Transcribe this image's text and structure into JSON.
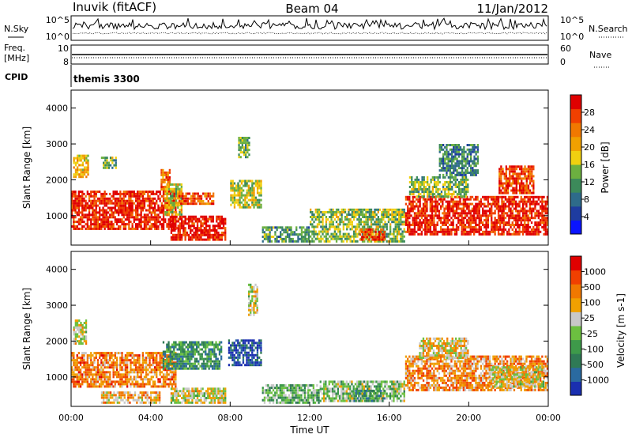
{
  "header": {
    "title_left": "Inuvik (fitACF)",
    "title_center": "Beam 04",
    "title_right": "11/Jan/2012"
  },
  "top_panels": {
    "nsky_label": "N.Sky",
    "nsky_ticks": [
      "10^5",
      "10^0"
    ],
    "nsearch_label": "N.Search",
    "nsearch_ticks": [
      "10^5",
      "10^0"
    ],
    "freq_label": "Freq.",
    "freq_unit": "[MHz]",
    "freq_ticks": [
      "10",
      "8"
    ],
    "nave_label": "Nave",
    "nave_ticks": [
      "60",
      "0"
    ],
    "cpid_label": "CPID",
    "cpid_value": "themis 3300"
  },
  "colors": {
    "power_scale": [
      "#0a14ff",
      "#1e3ca0",
      "#2e6b8a",
      "#3c8a5a",
      "#6cb040",
      "#f0d010",
      "#f0a000",
      "#f07800",
      "#f04000",
      "#e00000"
    ],
    "velocity_scale": [
      "#1a2fb0",
      "#2a6aa0",
      "#2f7a55",
      "#3e9a4a",
      "#6cc040",
      "#c8c8c8",
      "#f0a000",
      "#f07800",
      "#f04000",
      "#e00000"
    ]
  },
  "chart_data": [
    {
      "type": "heatmap",
      "panel": "power",
      "ylabel": "Slant Range [km]",
      "ylim": [
        180,
        4500
      ],
      "yticks": [
        "1000",
        "2000",
        "3000",
        "4000"
      ],
      "xlabel": "Time UT",
      "xticks": [
        "00:00",
        "04:00",
        "08:00",
        "12:00",
        "16:00",
        "20:00",
        "00:00"
      ],
      "xlim_hours": [
        0,
        24
      ],
      "colorbar_label": "Power [dB]",
      "colorbar_ticks": [
        "28",
        "24",
        "20",
        "16",
        "12",
        "8",
        "4"
      ],
      "clim": [
        0,
        30
      ],
      "regions": [
        {
          "t0": 0.0,
          "t1": 5.3,
          "r0": 600,
          "r1": 1700,
          "level": 0.92
        },
        {
          "t0": 0.1,
          "t1": 0.9,
          "r0": 2050,
          "r1": 2700,
          "level": 0.62
        },
        {
          "t0": 1.5,
          "t1": 2.3,
          "r0": 2300,
          "r1": 2650,
          "level": 0.45
        },
        {
          "t0": 4.5,
          "t1": 5.0,
          "r0": 1700,
          "r1": 2300,
          "level": 0.75
        },
        {
          "t0": 5.0,
          "t1": 7.8,
          "r0": 300,
          "r1": 1000,
          "level": 0.95
        },
        {
          "t0": 4.7,
          "t1": 5.6,
          "r0": 1000,
          "r1": 1900,
          "level": 0.55
        },
        {
          "t0": 5.4,
          "t1": 7.2,
          "r0": 1300,
          "r1": 1650,
          "level": 0.82
        },
        {
          "t0": 8.0,
          "t1": 9.6,
          "r0": 1200,
          "r1": 2000,
          "level": 0.5
        },
        {
          "t0": 8.4,
          "t1": 9.0,
          "r0": 2600,
          "r1": 3200,
          "level": 0.4
        },
        {
          "t0": 9.6,
          "t1": 12.0,
          "r0": 250,
          "r1": 700,
          "level": 0.35
        },
        {
          "t0": 12.0,
          "t1": 16.8,
          "r0": 250,
          "r1": 1200,
          "level": 0.45
        },
        {
          "t0": 14.5,
          "t1": 15.8,
          "r0": 300,
          "r1": 650,
          "level": 0.88
        },
        {
          "t0": 16.8,
          "t1": 24.0,
          "r0": 450,
          "r1": 1550,
          "level": 0.93
        },
        {
          "t0": 17.0,
          "t1": 20.0,
          "r0": 1500,
          "r1": 2100,
          "level": 0.45
        },
        {
          "t0": 18.5,
          "t1": 20.5,
          "r0": 2100,
          "r1": 3000,
          "level": 0.3
        },
        {
          "t0": 21.5,
          "t1": 23.3,
          "r0": 1600,
          "r1": 2400,
          "level": 0.85
        }
      ]
    },
    {
      "type": "heatmap",
      "panel": "velocity",
      "ylabel": "Slant Range [km]",
      "ylim": [
        180,
        4500
      ],
      "yticks": [
        "1000",
        "2000",
        "3000",
        "4000"
      ],
      "xlabel": "Time UT",
      "xticks": [
        "00:00",
        "04:00",
        "08:00",
        "12:00",
        "16:00",
        "20:00",
        "00:00"
      ],
      "xlim_hours": [
        0,
        24
      ],
      "colorbar_label": "Velocity [m s-1]",
      "colorbar_ticks": [
        "1000",
        "500",
        "100",
        "25",
        "-25",
        "-100",
        "-500",
        "-1000"
      ],
      "regions": [
        {
          "t0": 0.0,
          "t1": 5.3,
          "r0": 700,
          "r1": 1700,
          "level": 0.74
        },
        {
          "t0": 0.1,
          "t1": 0.8,
          "r0": 1900,
          "r1": 2600,
          "level": 0.55
        },
        {
          "t0": 4.6,
          "t1": 7.6,
          "r0": 1200,
          "r1": 2000,
          "level": 0.3
        },
        {
          "t0": 5.0,
          "t1": 7.8,
          "r0": 250,
          "r1": 700,
          "level": 0.55
        },
        {
          "t0": 1.5,
          "t1": 4.5,
          "r0": 250,
          "r1": 600,
          "level": 0.65
        },
        {
          "t0": 7.9,
          "t1": 9.6,
          "r0": 1300,
          "r1": 2050,
          "level": 0.1
        },
        {
          "t0": 8.9,
          "t1": 9.4,
          "r0": 2700,
          "r1": 3600,
          "level": 0.55
        },
        {
          "t0": 9.6,
          "t1": 12.5,
          "r0": 250,
          "r1": 800,
          "level": 0.4
        },
        {
          "t0": 12.5,
          "t1": 16.8,
          "r0": 300,
          "r1": 900,
          "level": 0.45
        },
        {
          "t0": 14.2,
          "t1": 15.8,
          "r0": 300,
          "r1": 650,
          "level": 0.3
        },
        {
          "t0": 16.8,
          "t1": 24.0,
          "r0": 600,
          "r1": 1600,
          "level": 0.72
        },
        {
          "t0": 17.5,
          "t1": 20.0,
          "r0": 1500,
          "r1": 2100,
          "level": 0.6
        },
        {
          "t0": 21.0,
          "t1": 23.8,
          "r0": 700,
          "r1": 1300,
          "level": 0.55
        }
      ]
    }
  ]
}
